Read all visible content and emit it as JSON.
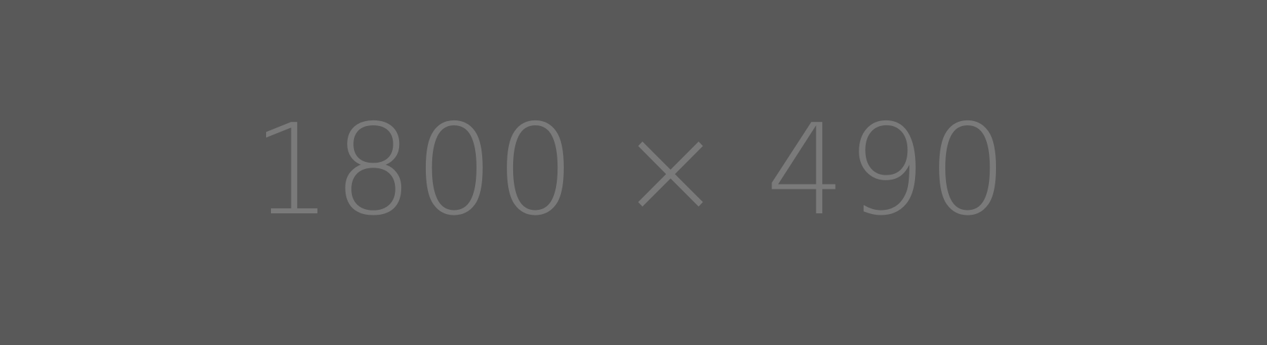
{
  "placeholder": {
    "label": "1800 × 490",
    "background_color": "#595959",
    "text_color": "#7a7a7a"
  }
}
